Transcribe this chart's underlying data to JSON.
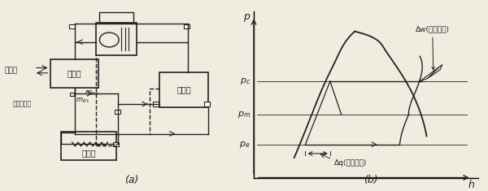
{
  "fig_width": 6.0,
  "fig_height": 2.35,
  "dpi": 100,
  "bg_color": "#f0ece0",
  "line_color": "#222222",
  "label_a": "(a)",
  "label_b": "(b)",
  "p_c": 5.8,
  "p_m": 3.8,
  "p_e": 2.0,
  "condenser_label": "冷凝器",
  "evaporator_label": "蒸发器",
  "economizer_label": "节能器",
  "cooling_water_label": "冷却水",
  "dry_filter_label": "干燥过滤器",
  "dw_label": "Δw(功耗减少)",
  "dq_label": "Δq(冷量增加)"
}
